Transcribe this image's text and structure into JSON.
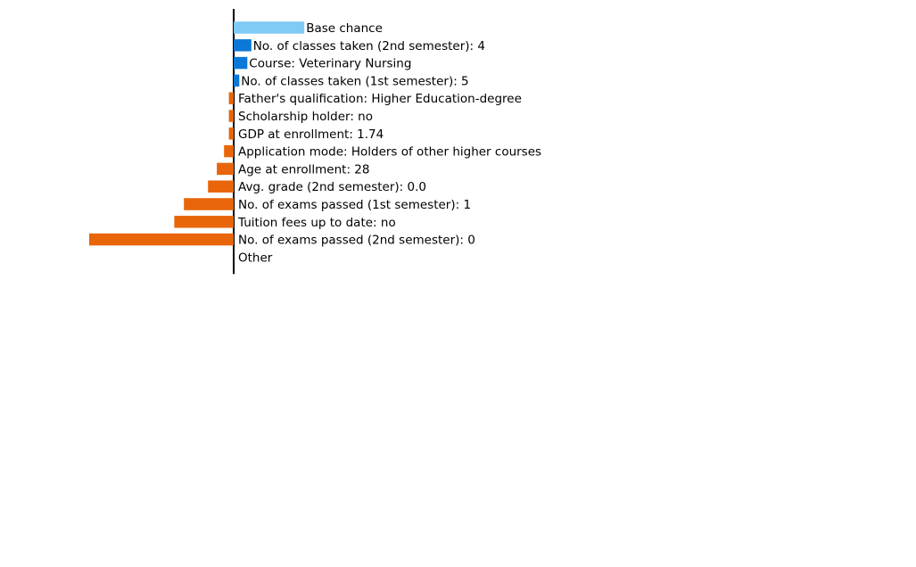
{
  "chart_data": {
    "type": "bar",
    "orientation": "horizontal",
    "title": "",
    "xlabel": "",
    "ylabel": "",
    "grid": false,
    "legend": "none",
    "base_label": "Base chance",
    "base_value": 0.44,
    "bars": [
      {
        "label": "No. of classes taken (2nd semester): 4",
        "value": 0.11
      },
      {
        "label": "Course: Veterinary Nursing",
        "value": 0.085
      },
      {
        "label": "No. of classes taken (1st semester): 5",
        "value": 0.035
      },
      {
        "label": "Father's qualification: Higher Education-degree",
        "value": -0.03
      },
      {
        "label": "Scholarship holder: no",
        "value": -0.03
      },
      {
        "label": "GDP at enrollment: 1.74",
        "value": -0.03
      },
      {
        "label": "Application mode: Holders of other higher courses",
        "value": -0.06
      },
      {
        "label": "Age at enrollment: 28",
        "value": -0.105
      },
      {
        "label": "Avg. grade (2nd semester): 0.0",
        "value": -0.16
      },
      {
        "label": "No. of exams passed (1st semester): 1",
        "value": -0.31
      },
      {
        "label": "Tuition fees up to date: no",
        "value": -0.37
      },
      {
        "label": "No. of exams passed (2nd semester): 0",
        "value": -0.9
      },
      {
        "label": "Other",
        "value": 0.0
      }
    ],
    "colors": {
      "base": "#7fcaf6",
      "positive": "#0b78d8",
      "negative": "#e8650a",
      "axis": "#000000"
    }
  }
}
